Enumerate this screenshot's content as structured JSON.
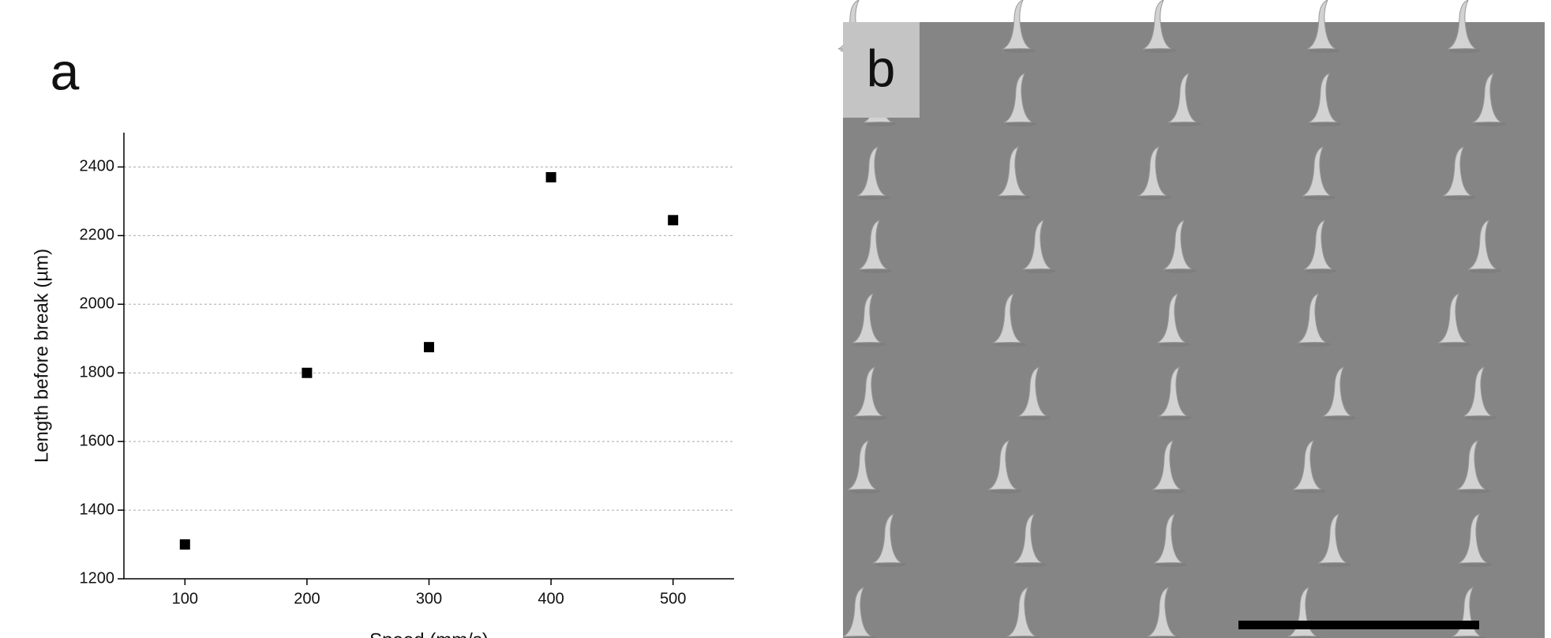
{
  "panel_labels": [
    "a",
    "b"
  ],
  "chart_data": {
    "type": "scatter",
    "x_label": "Speed (mm/s)",
    "y_label": "Length before break (µm)",
    "x": [
      100,
      200,
      300,
      400,
      500
    ],
    "values": [
      1300,
      1800,
      1875,
      2370,
      2245
    ],
    "color": "#000000",
    "xlim": [
      50,
      550
    ],
    "xticks": [
      100,
      200,
      300,
      400,
      500
    ],
    "ylim": [
      1200,
      2500
    ],
    "yticks": [
      1200,
      1400,
      1600,
      1800,
      2000,
      2200,
      2400
    ],
    "grid": true
  }
}
